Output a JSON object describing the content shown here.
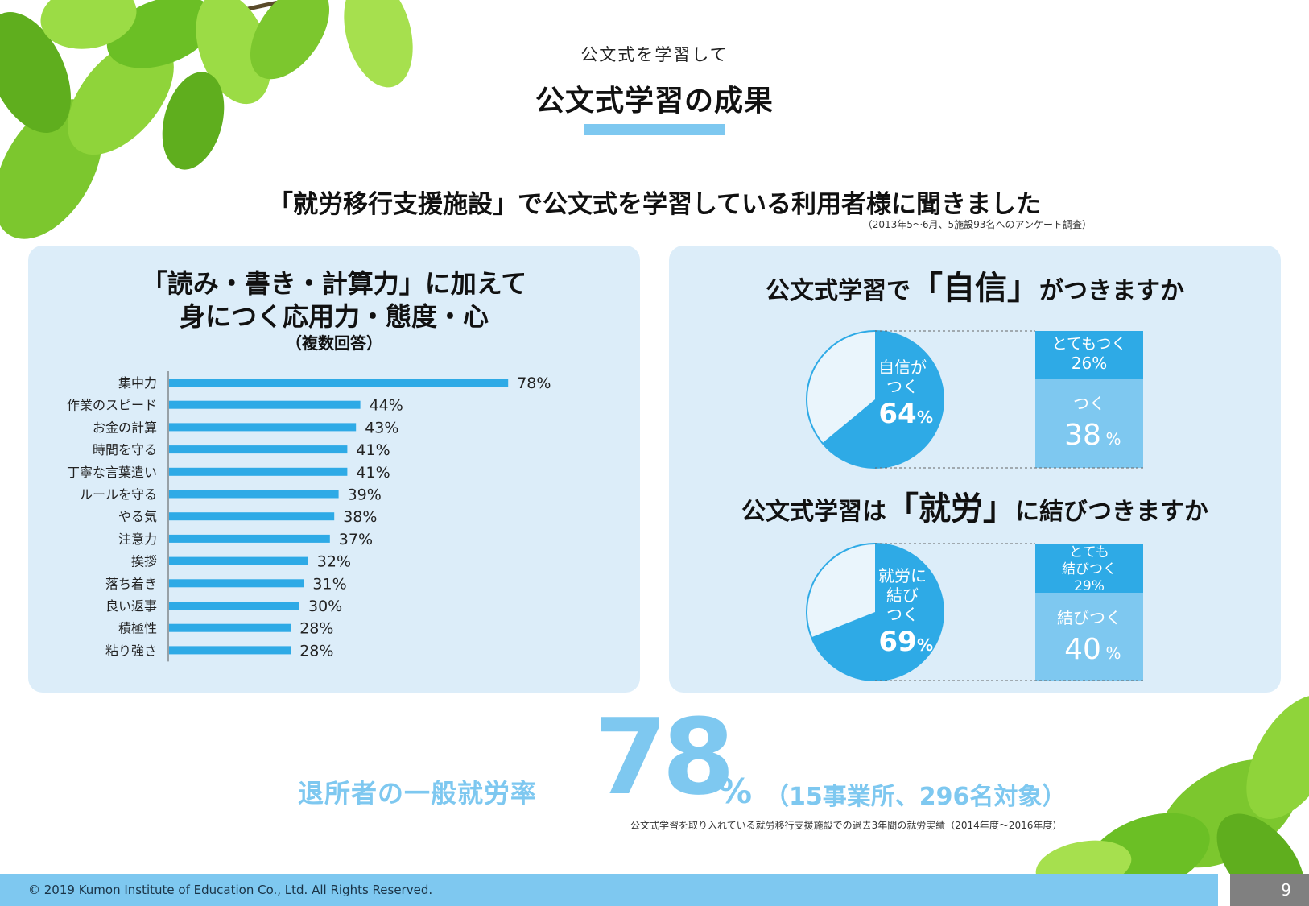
{
  "header": {
    "subtitle": "公文式を学習して",
    "title": "公文式学習の成果"
  },
  "headline": {
    "text": "「就労移行支援施設」で公文式を学習している利用者様に聞きました",
    "survey_note": "（2013年5～6月、5施設93名へのアンケート調査）"
  },
  "left_panel": {
    "title_line1": "「読み・書き・計算力」に加えて",
    "title_line2": "身につく応用力・態度・心",
    "title_line3": "（複数回答）"
  },
  "right_panel": {
    "q1_pre": "公文式学習で",
    "q1_key": "「自信」",
    "q1_post": "がつきますか",
    "q2_pre": "公文式学習は",
    "q2_key": "「就労」",
    "q2_post": "に結びつきますか"
  },
  "stat": {
    "label": "退所者の一般就労率",
    "number": "78",
    "percent_sign": "%",
    "note": "（15事業所、296名対象）",
    "sub": "公文式学習を取り入れている就労移行支援施設での過去3年間の就労実績（2014年度～2016年度）"
  },
  "footer": {
    "copyright": "© 2019 Kumon Institute of Education Co., Ltd. All Rights Reserved.",
    "page": "9"
  },
  "colors": {
    "accent": "#7ec8f0",
    "bar": "#2eaae6",
    "panel": "#dcedf9",
    "pie_main": "#2eaae6",
    "pie_light": "#7ec8f0"
  },
  "chart_data": [
    {
      "type": "bar",
      "orientation": "horizontal",
      "categories": [
        "集中力",
        "作業のスピード",
        "お金の計算",
        "時間を守る",
        "丁寧な言葉遣い",
        "ルールを守る",
        "やる気",
        "注意力",
        "挨拶",
        "落ち着き",
        "良い返事",
        "積極性",
        "粘り強さ"
      ],
      "values": [
        78,
        44,
        43,
        41,
        41,
        39,
        38,
        37,
        32,
        31,
        30,
        28,
        28
      ],
      "value_labels": [
        "78%",
        "44%",
        "43%",
        "41%",
        "41%",
        "39%",
        "38%",
        "37%",
        "32%",
        "31%",
        "30%",
        "28%",
        "28%"
      ],
      "xlim": [
        0,
        100
      ],
      "grid": false
    },
    {
      "type": "pie",
      "slice_label": "自信が\nつく",
      "slice_label_line1": "自信が",
      "slice_label_line2": "つく",
      "value": 64,
      "value_text": "64",
      "percent_sign": "%",
      "breakdown": [
        {
          "label": "とてもつく",
          "value": 26,
          "value_text": "26%"
        },
        {
          "label": "つく",
          "value": 38,
          "value_text": "38"
        }
      ]
    },
    {
      "type": "pie",
      "slice_label_line1": "就労に",
      "slice_label_line2": "結び",
      "slice_label_line3": "つく",
      "value": 69,
      "value_text": "69",
      "percent_sign": "%",
      "breakdown": [
        {
          "label_line1": "とても",
          "label_line2": "結びつく",
          "value": 29,
          "value_text": "29%"
        },
        {
          "label": "結びつく",
          "value": 40,
          "value_text": "40"
        }
      ]
    }
  ]
}
